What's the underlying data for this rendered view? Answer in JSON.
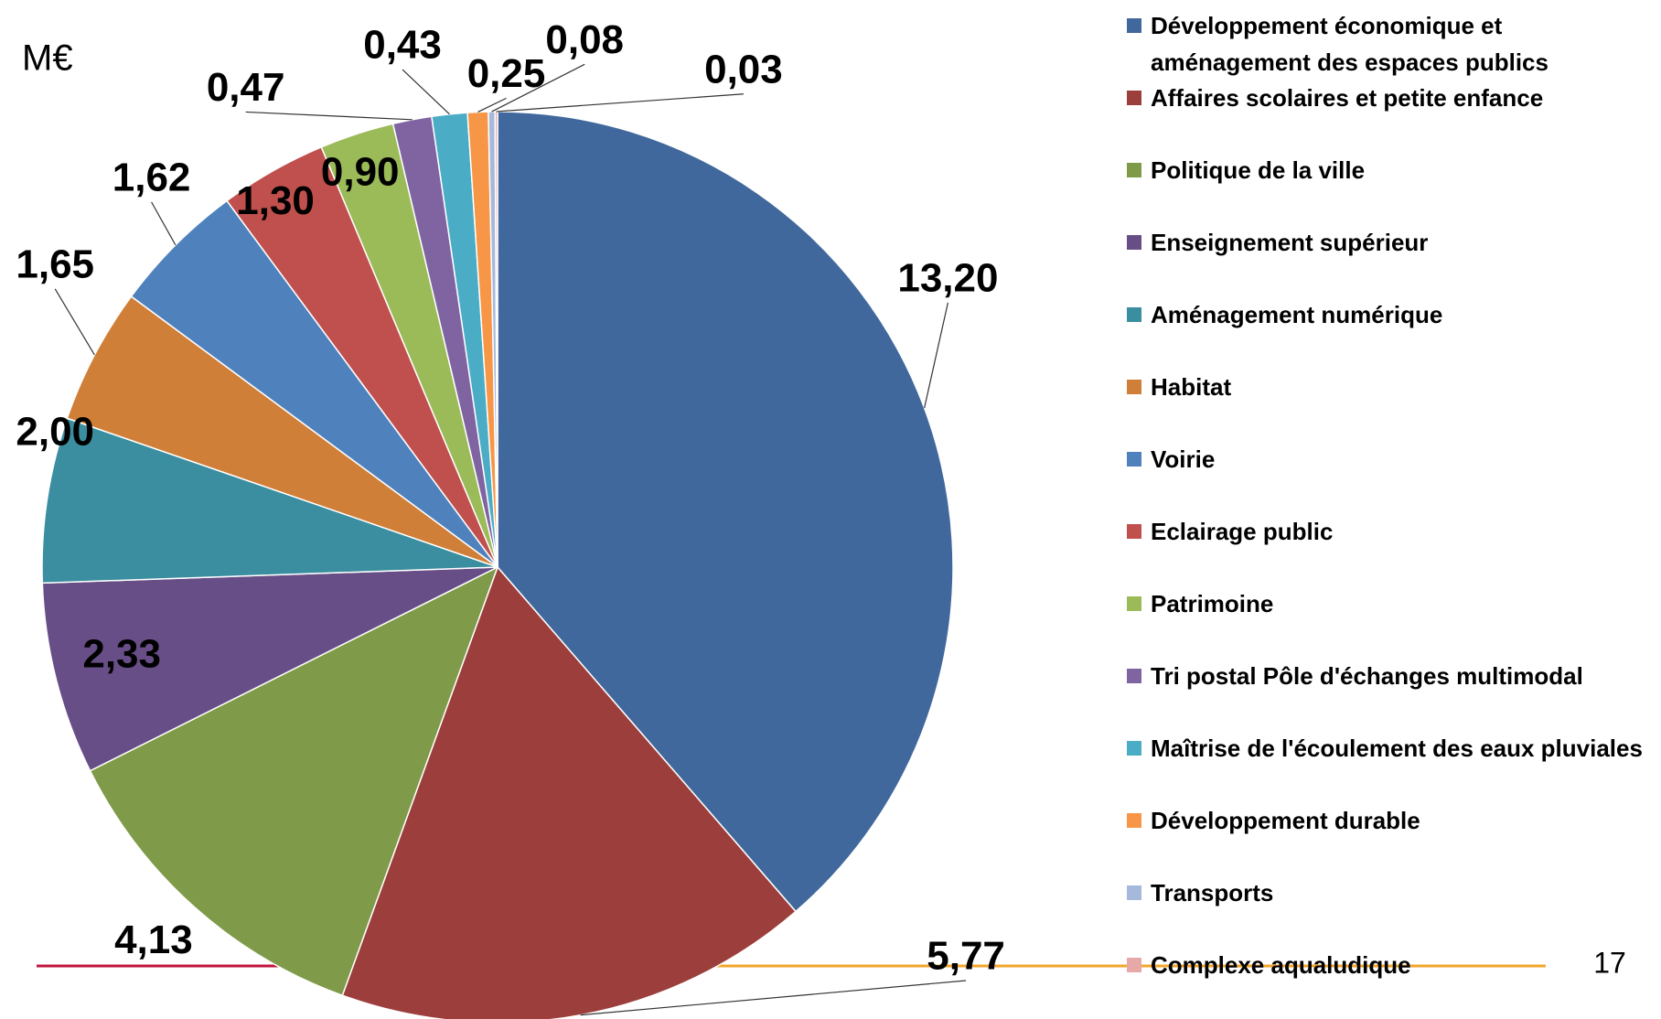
{
  "chart_data": {
    "type": "pie",
    "unit": "M€",
    "categories": [
      "Développement économique et aménagement des espaces publics",
      "Affaires scolaires et petite enfance",
      "Politique de la ville",
      "Enseignement supérieur",
      "Aménagement numérique",
      "Habitat",
      "Voirie",
      "Eclairage public",
      "Patrimoine",
      "Tri postal Pôle d'échanges multimodal",
      "Maîtrise de l'écoulement des eaux pluviales",
      "Développement durable",
      "Transports",
      "Complexe aqualudique"
    ],
    "values": [
      13.2,
      5.77,
      4.13,
      2.33,
      2.0,
      1.65,
      1.62,
      1.3,
      0.9,
      0.47,
      0.43,
      0.25,
      0.08,
      0.03
    ],
    "value_labels": [
      "13,20",
      "5,77",
      "4,13",
      "2,33",
      "2,00",
      "1,65",
      "1,62",
      "1,30",
      "0,90",
      "0,47",
      "0,43",
      "0,25",
      "0,08",
      "0,03"
    ],
    "colors": [
      "#41689c",
      "#9c3f3c",
      "#7f9a48",
      "#684e86",
      "#3b8da0",
      "#d07f38",
      "#4f81bd",
      "#c0504d",
      "#9bbb59",
      "#8064a2",
      "#4bacc6",
      "#f79646",
      "#a6b9dc",
      "#e6a9a8"
    ],
    "legend": "right"
  },
  "page_number": "17"
}
